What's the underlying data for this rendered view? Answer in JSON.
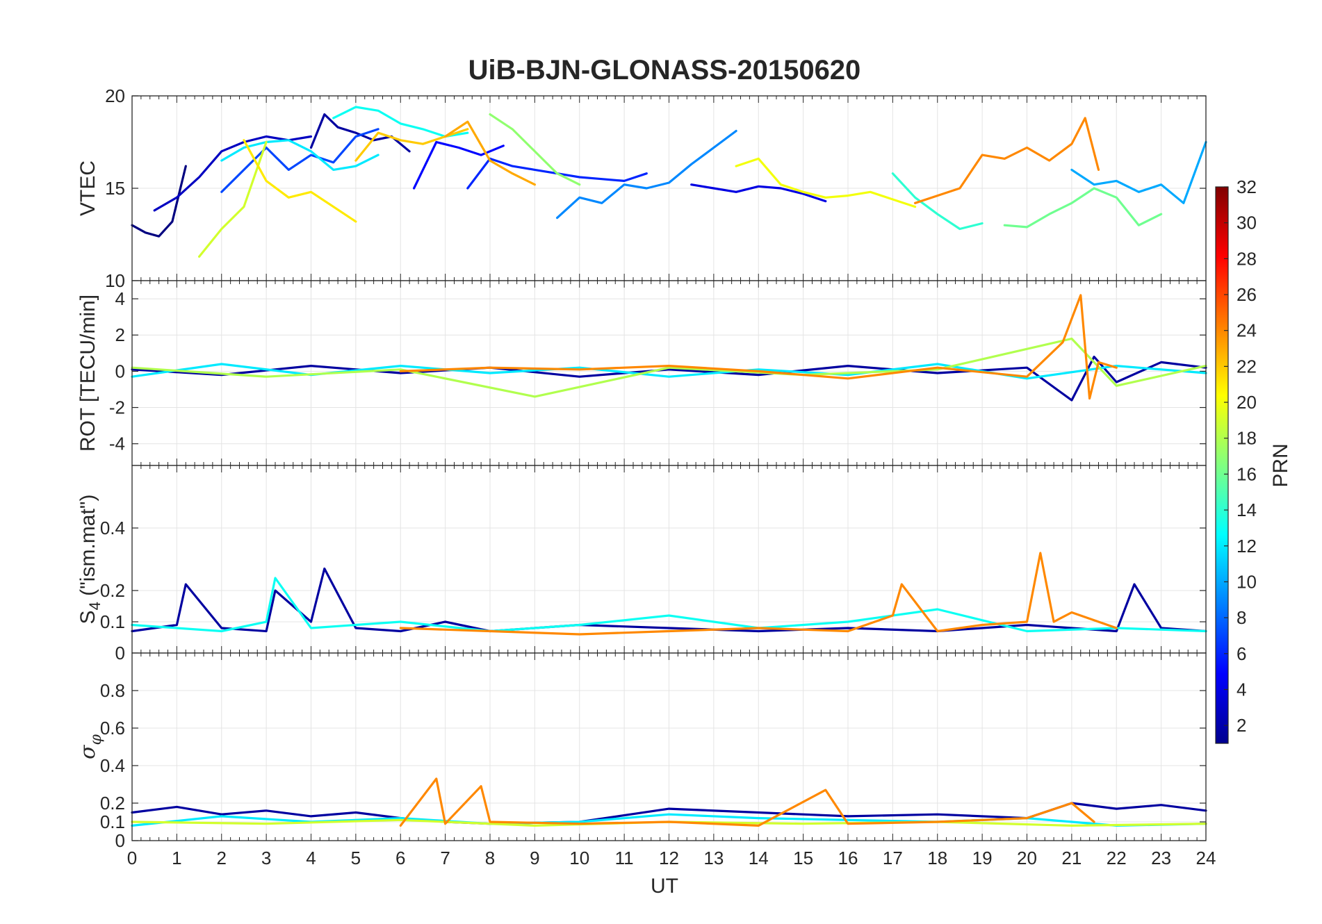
{
  "chart_data": {
    "type": "line",
    "title": "UiB-BJN-GLONASS-20150620",
    "xlabel": "UT",
    "xlim": [
      0,
      24
    ],
    "x_ticks": [
      0,
      1,
      2,
      3,
      4,
      5,
      6,
      7,
      8,
      9,
      10,
      11,
      12,
      13,
      14,
      15,
      16,
      17,
      18,
      19,
      20,
      21,
      22,
      23,
      24
    ],
    "grid": true,
    "color_by": "PRN",
    "colormap": "jet",
    "colorbar": {
      "label": "PRN",
      "range": [
        1,
        32
      ],
      "ticks": [
        2,
        4,
        6,
        8,
        10,
        12,
        14,
        16,
        18,
        20,
        22,
        24,
        26,
        28,
        30,
        32
      ]
    },
    "panels": [
      {
        "name": "vtec",
        "ylabel": "VTEC",
        "ylim": [
          10,
          20
        ],
        "y_ticks": [
          10,
          15,
          20
        ],
        "series": [
          {
            "prn": 1,
            "x": [
              0,
              0.3,
              0.6,
              0.9,
              1.2
            ],
            "y": [
              13.0,
              12.6,
              12.4,
              13.2,
              16.2
            ]
          },
          {
            "prn": 2,
            "x": [
              4.0,
              4.3,
              4.6,
              5.0,
              5.4,
              5.8,
              6.2
            ],
            "y": [
              17.2,
              19.0,
              18.3,
              18.0,
              17.6,
              17.8,
              17.0
            ]
          },
          {
            "prn": 3,
            "x": [
              0.5,
              1.0,
              1.5,
              2.0,
              2.5,
              3.0,
              3.5,
              4.0
            ],
            "y": [
              13.8,
              14.5,
              15.6,
              17.0,
              17.5,
              17.8,
              17.6,
              17.8
            ]
          },
          {
            "prn": 4,
            "x": [
              12.5,
              13.0,
              13.5,
              14.0,
              14.5,
              15.0,
              15.5
            ],
            "y": [
              15.2,
              15.0,
              14.8,
              15.1,
              15.0,
              14.7,
              14.3
            ]
          },
          {
            "prn": 5,
            "x": [
              6.3,
              6.8,
              7.3,
              7.8,
              8.3
            ],
            "y": [
              15.0,
              17.5,
              17.2,
              16.8,
              17.3
            ]
          },
          {
            "prn": 6,
            "x": [
              7.5,
              8.0,
              8.5,
              9.0,
              9.5,
              10.0,
              10.5,
              11.0,
              11.5
            ],
            "y": [
              15.0,
              16.6,
              16.2,
              16.0,
              15.8,
              15.6,
              15.5,
              15.4,
              15.8
            ]
          },
          {
            "prn": 7,
            "x": [
              2.0,
              2.5,
              3.0,
              3.5,
              4.0,
              4.5,
              5.0,
              5.5
            ],
            "y": [
              14.8,
              16.0,
              17.2,
              16.0,
              16.8,
              16.4,
              17.8,
              18.2
            ]
          },
          {
            "prn": 9,
            "x": [
              9.5,
              10.0,
              10.5,
              11.0,
              11.5,
              12.0,
              12.5,
              13.0,
              13.5
            ],
            "y": [
              13.4,
              14.5,
              14.2,
              15.2,
              15.0,
              15.3,
              16.3,
              17.2,
              18.1
            ]
          },
          {
            "prn": 10,
            "x": [
              21.0,
              21.5,
              22.0,
              22.5,
              23.0,
              23.5,
              24.0
            ],
            "y": [
              16.0,
              15.2,
              15.4,
              14.8,
              15.2,
              14.2,
              17.5
            ]
          },
          {
            "prn": 12,
            "x": [
              2.0,
              2.5,
              3.0,
              3.5,
              4.0,
              4.5,
              5.0,
              5.5
            ],
            "y": [
              16.5,
              17.2,
              17.5,
              17.6,
              17.0,
              16.0,
              16.2,
              16.8
            ]
          },
          {
            "prn": 13,
            "x": [
              4.5,
              5.0,
              5.5,
              6.0,
              6.5,
              7.0,
              7.5
            ],
            "y": [
              18.8,
              19.4,
              19.2,
              18.5,
              18.2,
              17.8,
              18.0
            ]
          },
          {
            "prn": 14,
            "x": [
              17.0,
              17.5,
              18.0,
              18.5,
              19.0
            ],
            "y": [
              15.8,
              14.5,
              13.6,
              12.8,
              13.1
            ]
          },
          {
            "prn": 16,
            "x": [
              19.5,
              20.0,
              20.5,
              21.0,
              21.5,
              22.0,
              22.5,
              23.0
            ],
            "y": [
              13.0,
              12.9,
              13.6,
              14.2,
              15.0,
              14.5,
              13.0,
              13.6
            ]
          },
          {
            "prn": 17,
            "x": [
              8.0,
              8.5,
              9.0,
              9.5,
              10.0
            ],
            "y": [
              19.0,
              18.2,
              17.0,
              15.8,
              15.2
            ]
          },
          {
            "prn": 19,
            "x": [
              1.5,
              2.0,
              2.5,
              3.0
            ],
            "y": [
              11.3,
              12.8,
              14.0,
              17.5
            ]
          },
          {
            "prn": 20,
            "x": [
              13.5,
              14.0,
              14.5,
              15.0,
              15.5,
              16.0,
              16.5,
              17.0,
              17.5
            ],
            "y": [
              16.2,
              16.6,
              15.2,
              14.8,
              14.5,
              14.6,
              14.8,
              14.4,
              14.0
            ]
          },
          {
            "prn": 21,
            "x": [
              2.5,
              3.0,
              3.5,
              4.0,
              4.5,
              5.0
            ],
            "y": [
              17.6,
              15.4,
              14.5,
              14.8,
              14.0,
              13.2
            ]
          },
          {
            "prn": 22,
            "x": [
              5.0,
              5.5,
              6.0,
              6.5,
              7.0,
              7.5
            ],
            "y": [
              16.5,
              18.0,
              17.6,
              17.4,
              17.8,
              18.2
            ]
          },
          {
            "prn": 23,
            "x": [
              7.0,
              7.5,
              8.0,
              8.5,
              9.0
            ],
            "y": [
              17.8,
              18.6,
              16.5,
              15.8,
              15.2
            ]
          },
          {
            "prn": 24,
            "x": [
              17.5,
              18.0,
              18.5,
              19.0,
              19.5,
              20.0,
              20.5,
              21.0,
              21.3,
              21.6
            ],
            "y": [
              14.2,
              14.6,
              15.0,
              16.8,
              16.6,
              17.2,
              16.5,
              17.4,
              18.8,
              16.0
            ]
          }
        ]
      },
      {
        "name": "rot",
        "ylabel": "ROT [TECU/min]",
        "ylim": [
          -5.2,
          5
        ],
        "y_ticks": [
          -4,
          -2,
          0,
          2,
          4
        ],
        "series": [
          {
            "prn": 2,
            "x": [
              0,
              2,
              4,
              6,
              8,
              10,
              12,
              14,
              16,
              18,
              20,
              21,
              21.5,
              22,
              23,
              24
            ],
            "y": [
              0.1,
              -0.2,
              0.3,
              -0.1,
              0.2,
              -0.3,
              0.1,
              -0.2,
              0.3,
              -0.1,
              0.2,
              -1.6,
              0.8,
              -0.6,
              0.5,
              0.2
            ]
          },
          {
            "prn": 12,
            "x": [
              0,
              2,
              4,
              6,
              8,
              10,
              12,
              14,
              16,
              18,
              20,
              22,
              24
            ],
            "y": [
              -0.3,
              0.4,
              -0.2,
              0.3,
              -0.1,
              0.2,
              -0.3,
              0.1,
              -0.2,
              0.4,
              -0.4,
              0.3,
              -0.1
            ]
          },
          {
            "prn": 18,
            "x": [
              0,
              3,
              6,
              9,
              12,
              15,
              18,
              21,
              22,
              24
            ],
            "y": [
              0.2,
              -0.3,
              0.1,
              -1.4,
              0.2,
              -0.2,
              0.1,
              1.8,
              -0.8,
              0.3
            ]
          },
          {
            "prn": 24,
            "x": [
              6,
              8,
              10,
              12,
              14,
              16,
              18,
              20,
              20.8,
              21.2,
              21.4,
              21.6,
              22
            ],
            "y": [
              0.0,
              0.2,
              0.1,
              0.3,
              0.0,
              -0.4,
              0.2,
              -0.3,
              1.6,
              4.2,
              -1.5,
              0.5,
              0.2
            ]
          }
        ]
      },
      {
        "name": "s4",
        "ylabel": "S4 (\"ism.mat\")",
        "ylim": [
          0,
          0.6
        ],
        "y_ticks": [
          0,
          0.1,
          0.2,
          0.4
        ],
        "series": [
          {
            "prn": 2,
            "x": [
              0,
              1,
              1.2,
              2,
              3,
              3.2,
              4,
              4.3,
              5,
              6,
              7,
              8,
              10,
              12,
              14,
              16,
              18,
              20,
              21,
              22,
              22.4,
              23,
              24
            ],
            "y": [
              0.07,
              0.09,
              0.22,
              0.08,
              0.07,
              0.2,
              0.1,
              0.27,
              0.08,
              0.07,
              0.1,
              0.07,
              0.09,
              0.08,
              0.07,
              0.08,
              0.07,
              0.09,
              0.08,
              0.07,
              0.22,
              0.08,
              0.07
            ]
          },
          {
            "prn": 13,
            "x": [
              0,
              2,
              3,
              3.2,
              4,
              6,
              8,
              10,
              12,
              14,
              16,
              18,
              20,
              22,
              24
            ],
            "y": [
              0.09,
              0.07,
              0.1,
              0.24,
              0.08,
              0.1,
              0.07,
              0.09,
              0.12,
              0.08,
              0.1,
              0.14,
              0.07,
              0.08,
              0.07
            ]
          },
          {
            "prn": 24,
            "x": [
              6,
              8,
              10,
              12,
              14,
              16,
              17,
              17.2,
              18,
              19,
              20,
              20.3,
              20.6,
              21,
              22
            ],
            "y": [
              0.08,
              0.07,
              0.06,
              0.07,
              0.08,
              0.07,
              0.12,
              0.22,
              0.07,
              0.09,
              0.1,
              0.32,
              0.1,
              0.13,
              0.08
            ]
          }
        ]
      },
      {
        "name": "sigma_phi",
        "ylabel": "σφ",
        "ylim": [
          0,
          1
        ],
        "y_ticks": [
          0,
          0.1,
          0.2,
          0.4,
          0.6,
          0.8
        ],
        "series": [
          {
            "prn": 2,
            "x": [
              0,
              1,
              2,
              3,
              4,
              5,
              6,
              7,
              8,
              10,
              12,
              14,
              16,
              18,
              20,
              21,
              22,
              23,
              24
            ],
            "y": [
              0.15,
              0.18,
              0.14,
              0.16,
              0.13,
              0.15,
              0.12,
              0.1,
              0.09,
              0.1,
              0.17,
              0.15,
              0.13,
              0.14,
              0.12,
              0.2,
              0.17,
              0.19,
              0.16
            ]
          },
          {
            "prn": 12,
            "x": [
              0,
              2,
              4,
              6,
              8,
              10,
              12,
              14,
              16,
              18,
              20,
              22,
              24
            ],
            "y": [
              0.08,
              0.13,
              0.1,
              0.12,
              0.09,
              0.1,
              0.14,
              0.12,
              0.11,
              0.1,
              0.12,
              0.08,
              0.09
            ]
          },
          {
            "prn": 19,
            "x": [
              0,
              3,
              6,
              9,
              12,
              15,
              18,
              21,
              24
            ],
            "y": [
              0.1,
              0.09,
              0.11,
              0.08,
              0.1,
              0.09,
              0.1,
              0.08,
              0.09
            ]
          },
          {
            "prn": 24,
            "x": [
              6,
              6.8,
              7,
              7.8,
              8,
              10,
              12,
              14,
              15.5,
              16,
              18,
              20,
              21,
              21.5
            ],
            "y": [
              0.08,
              0.33,
              0.09,
              0.29,
              0.1,
              0.09,
              0.1,
              0.08,
              0.27,
              0.09,
              0.1,
              0.12,
              0.2,
              0.1
            ]
          }
        ]
      }
    ]
  }
}
